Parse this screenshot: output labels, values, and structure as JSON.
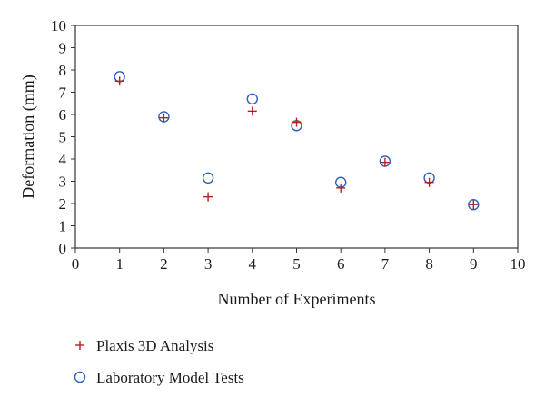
{
  "chart_data": {
    "type": "scatter",
    "title": "",
    "xlabel": "Number of Experiments",
    "ylabel": "Deformation (mm)",
    "xlim": [
      0,
      10
    ],
    "ylim": [
      0,
      10
    ],
    "xticks": [
      "0",
      "1",
      "2",
      "3",
      "4",
      "5",
      "6",
      "7",
      "8",
      "9",
      "10"
    ],
    "yticks": [
      "0",
      "1",
      "2",
      "3",
      "4",
      "5",
      "6",
      "7",
      "8",
      "9",
      "10"
    ],
    "grid": false,
    "legend_position": "bottom-left",
    "series": [
      {
        "name": "Plaxis 3D Analysis",
        "marker": "plus",
        "color": "#b22222",
        "x": [
          1,
          2,
          3,
          4,
          5,
          6,
          7,
          8,
          9
        ],
        "y": [
          7.5,
          5.85,
          2.3,
          6.15,
          5.65,
          2.7,
          3.85,
          2.95,
          1.95
        ]
      },
      {
        "name": "Laboratory Model Tests",
        "marker": "circle",
        "color": "#2e5fb8",
        "x": [
          1,
          2,
          3,
          4,
          5,
          6,
          7,
          8,
          9
        ],
        "y": [
          7.7,
          5.9,
          3.15,
          6.7,
          5.5,
          2.95,
          3.9,
          3.15,
          1.95
        ]
      }
    ]
  }
}
